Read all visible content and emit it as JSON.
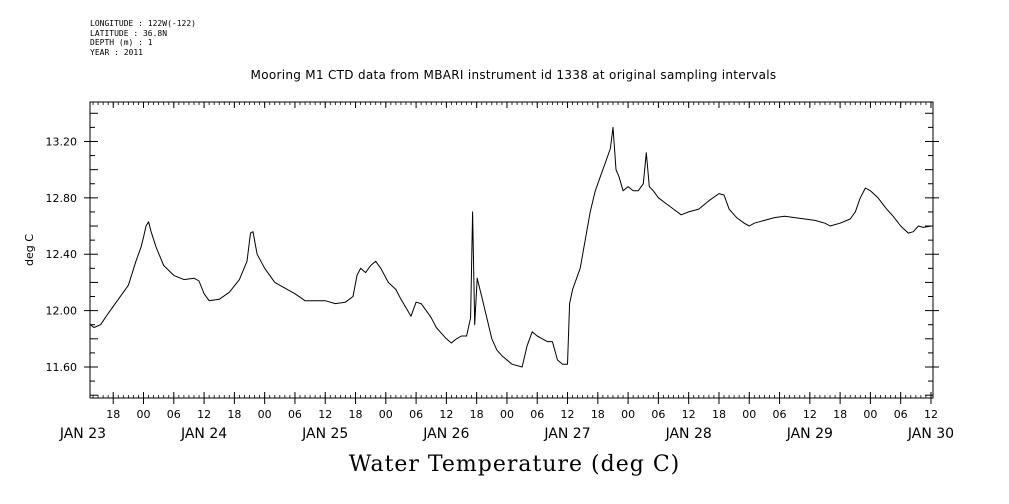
{
  "meta_lines": [
    "LONGITUDE : 122W(-122)",
    "LATITUDE : 36.8N",
    "DEPTH (m) : 1",
    "YEAR : 2011"
  ],
  "chart_data": {
    "type": "line",
    "title": "Mooring M1 CTD data from MBARI instrument id 1338 at original sampling intervals",
    "xlabel": "Water Temperature (deg C)",
    "ylabel": "deg C",
    "ylim": [
      11.38,
      13.48
    ],
    "yticks": [
      11.6,
      12.0,
      12.4,
      12.8,
      13.2
    ],
    "ytick_labels": [
      "11.60",
      "12.00",
      "12.40",
      "12.80",
      "13.20"
    ],
    "hour_ticks": [
      {
        "t": -6,
        "label": "18"
      },
      {
        "t": 0,
        "label": "00"
      },
      {
        "t": 6,
        "label": "06"
      },
      {
        "t": 12,
        "label": "12"
      },
      {
        "t": 18,
        "label": "18"
      },
      {
        "t": 24,
        "label": "00"
      },
      {
        "t": 30,
        "label": "06"
      },
      {
        "t": 36,
        "label": "12"
      },
      {
        "t": 42,
        "label": "18"
      },
      {
        "t": 48,
        "label": "00"
      },
      {
        "t": 54,
        "label": "06"
      },
      {
        "t": 60,
        "label": "12"
      },
      {
        "t": 66,
        "label": "18"
      },
      {
        "t": 72,
        "label": "00"
      },
      {
        "t": 78,
        "label": "06"
      },
      {
        "t": 84,
        "label": "12"
      },
      {
        "t": 90,
        "label": "18"
      },
      {
        "t": 96,
        "label": "00"
      },
      {
        "t": 102,
        "label": "06"
      },
      {
        "t": 108,
        "label": "12"
      },
      {
        "t": 114,
        "label": "18"
      },
      {
        "t": 120,
        "label": "00"
      },
      {
        "t": 126,
        "label": "06"
      },
      {
        "t": 132,
        "label": "12"
      },
      {
        "t": 138,
        "label": "18"
      },
      {
        "t": 144,
        "label": "00"
      },
      {
        "t": 150,
        "label": "06"
      },
      {
        "t": 156,
        "label": "12"
      }
    ],
    "day_labels": [
      {
        "t": -12,
        "label": "JAN 23"
      },
      {
        "t": 12,
        "label": "JAN 24"
      },
      {
        "t": 36,
        "label": "JAN 25"
      },
      {
        "t": 60,
        "label": "JAN 26"
      },
      {
        "t": 84,
        "label": "JAN 27"
      },
      {
        "t": 108,
        "label": "JAN 28"
      },
      {
        "t": 132,
        "label": "JAN 29"
      },
      {
        "t": 156,
        "label": "JAN 30"
      }
    ],
    "xlim_hours": [
      -10.6,
      156.4
    ],
    "series": [
      {
        "color": "#000000",
        "points": [
          [
            -10.5,
            11.9
          ],
          [
            -9.8,
            11.88
          ],
          [
            -8.5,
            11.9
          ],
          [
            -7,
            11.98
          ],
          [
            -5,
            12.08
          ],
          [
            -3,
            12.18
          ],
          [
            -1.5,
            12.35
          ],
          [
            -0.5,
            12.45
          ],
          [
            0,
            12.52
          ],
          [
            0.5,
            12.6
          ],
          [
            1,
            12.63
          ],
          [
            1.5,
            12.56
          ],
          [
            2.5,
            12.45
          ],
          [
            4,
            12.32
          ],
          [
            6,
            12.25
          ],
          [
            8,
            12.22
          ],
          [
            10,
            12.23
          ],
          [
            11,
            12.21
          ],
          [
            12,
            12.12
          ],
          [
            13,
            12.07
          ],
          [
            15,
            12.08
          ],
          [
            17,
            12.13
          ],
          [
            19,
            12.22
          ],
          [
            20.5,
            12.35
          ],
          [
            21.2,
            12.55
          ],
          [
            21.7,
            12.56
          ],
          [
            22.5,
            12.4
          ],
          [
            24,
            12.3
          ],
          [
            26,
            12.2
          ],
          [
            28,
            12.16
          ],
          [
            30,
            12.12
          ],
          [
            32,
            12.07
          ],
          [
            34,
            12.07
          ],
          [
            36,
            12.07
          ],
          [
            38,
            12.05
          ],
          [
            40,
            12.06
          ],
          [
            41.5,
            12.1
          ],
          [
            42.3,
            12.25
          ],
          [
            43,
            12.3
          ],
          [
            44,
            12.27
          ],
          [
            45,
            12.32
          ],
          [
            46,
            12.35
          ],
          [
            47,
            12.3
          ],
          [
            48.5,
            12.2
          ],
          [
            50,
            12.15
          ],
          [
            51,
            12.08
          ],
          [
            52,
            12.02
          ],
          [
            53,
            11.96
          ],
          [
            54,
            12.06
          ],
          [
            55,
            12.05
          ],
          [
            56,
            12.0
          ],
          [
            57,
            11.95
          ],
          [
            58,
            11.88
          ],
          [
            59,
            11.84
          ],
          [
            60,
            11.8
          ],
          [
            61,
            11.77
          ],
          [
            62,
            11.8
          ],
          [
            63,
            11.82
          ],
          [
            64,
            11.82
          ],
          [
            64.8,
            11.95
          ],
          [
            65.2,
            12.7
          ],
          [
            65.6,
            11.9
          ],
          [
            66.1,
            12.23
          ],
          [
            67,
            12.1
          ],
          [
            68,
            11.95
          ],
          [
            69,
            11.8
          ],
          [
            70,
            11.72
          ],
          [
            71,
            11.68
          ],
          [
            73,
            11.62
          ],
          [
            75,
            11.6
          ],
          [
            76,
            11.75
          ],
          [
            77,
            11.85
          ],
          [
            78,
            11.82
          ],
          [
            79,
            11.8
          ],
          [
            80,
            11.78
          ],
          [
            81,
            11.78
          ],
          [
            82,
            11.65
          ],
          [
            83,
            11.62
          ],
          [
            84,
            11.62
          ],
          [
            84.4,
            12.05
          ],
          [
            85,
            12.15
          ],
          [
            86,
            12.25
          ],
          [
            86.5,
            12.3
          ],
          [
            87.5,
            12.5
          ],
          [
            88.5,
            12.7
          ],
          [
            89.5,
            12.85
          ],
          [
            90.5,
            12.95
          ],
          [
            91.5,
            13.05
          ],
          [
            92.5,
            13.15
          ],
          [
            93,
            13.3
          ],
          [
            93.6,
            13.0
          ],
          [
            94.2,
            12.95
          ],
          [
            95,
            12.85
          ],
          [
            96,
            12.88
          ],
          [
            97,
            12.85
          ],
          [
            98,
            12.85
          ],
          [
            99,
            12.9
          ],
          [
            99.6,
            13.12
          ],
          [
            100.2,
            12.88
          ],
          [
            101,
            12.85
          ],
          [
            102,
            12.8
          ],
          [
            103.5,
            12.76
          ],
          [
            105,
            12.72
          ],
          [
            106.5,
            12.68
          ],
          [
            108,
            12.7
          ],
          [
            110,
            12.72
          ],
          [
            112,
            12.78
          ],
          [
            114,
            12.83
          ],
          [
            115,
            12.82
          ],
          [
            116,
            12.72
          ],
          [
            117.5,
            12.66
          ],
          [
            119,
            12.62
          ],
          [
            120,
            12.6
          ],
          [
            121,
            12.62
          ],
          [
            123,
            12.64
          ],
          [
            125,
            12.66
          ],
          [
            127,
            12.67
          ],
          [
            129,
            12.66
          ],
          [
            131,
            12.65
          ],
          [
            133,
            12.64
          ],
          [
            135,
            12.62
          ],
          [
            136,
            12.6
          ],
          [
            138,
            12.62
          ],
          [
            140,
            12.65
          ],
          [
            141,
            12.7
          ],
          [
            142,
            12.8
          ],
          [
            143,
            12.87
          ],
          [
            144,
            12.85
          ],
          [
            145.5,
            12.8
          ],
          [
            147,
            12.73
          ],
          [
            148.5,
            12.67
          ],
          [
            150,
            12.6
          ],
          [
            151.5,
            12.55
          ],
          [
            152.5,
            12.56
          ],
          [
            153.5,
            12.6
          ],
          [
            154.5,
            12.59
          ],
          [
            156,
            12.6
          ]
        ]
      }
    ]
  }
}
